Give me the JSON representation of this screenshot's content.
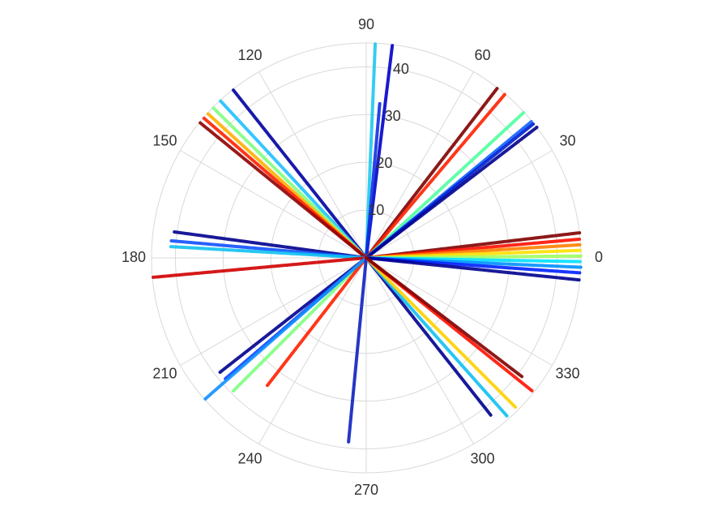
{
  "chart_data": {
    "type": "polar",
    "rlim": [
      0,
      45
    ],
    "rticks": [
      10,
      20,
      30,
      40
    ],
    "thetaticks": [
      0,
      30,
      60,
      90,
      120,
      150,
      180,
      210,
      240,
      270,
      300,
      330
    ],
    "grid": true,
    "series": [
      {
        "color": "#1ec8f0",
        "theta": [
          87.6,
          87.6
        ],
        "r": [
          0,
          45
        ]
      },
      {
        "color": "#0000c8",
        "theta": [
          83,
          83
        ],
        "r": [
          0,
          44.8
        ]
      },
      {
        "color": "#1030e0",
        "theta": [
          85,
          85
        ],
        "r": [
          0,
          32.4
        ]
      },
      {
        "color": "#800000",
        "theta": [
          52.3,
          52.3
        ],
        "r": [
          0,
          45
        ]
      },
      {
        "color": "#ff2000",
        "theta": [
          49.7,
          49.7
        ],
        "r": [
          0,
          45
        ]
      },
      {
        "color": "#50ffa0",
        "theta": [
          42.7,
          42.7
        ],
        "r": [
          0,
          45
        ]
      },
      {
        "color": "#1060ff",
        "theta": [
          39.5,
          39.5
        ],
        "r": [
          0,
          45
        ]
      },
      {
        "color": "#0020d0",
        "theta": [
          38.7,
          38.7
        ],
        "r": [
          0,
          45
        ]
      },
      {
        "color": "#00008f",
        "theta": [
          37.4,
          37.4
        ],
        "r": [
          0,
          45
        ]
      },
      {
        "color": "#800000",
        "theta": [
          6.7,
          6.7
        ],
        "r": [
          0,
          45
        ]
      },
      {
        "color": "#ff1000",
        "theta": [
          5,
          5
        ],
        "r": [
          0,
          45
        ]
      },
      {
        "color": "#ff8000",
        "theta": [
          3.5,
          3.5
        ],
        "r": [
          0,
          45
        ]
      },
      {
        "color": "#ffe000",
        "theta": [
          2,
          2
        ],
        "r": [
          0,
          45
        ]
      },
      {
        "color": "#a0ff60",
        "theta": [
          0.5,
          0.5
        ],
        "r": [
          0,
          45
        ]
      },
      {
        "color": "#00e0ff",
        "theta": [
          -1,
          -1
        ],
        "r": [
          0,
          45
        ]
      },
      {
        "color": "#0090ff",
        "theta": [
          -2.5,
          -2.5
        ],
        "r": [
          0,
          45
        ]
      },
      {
        "color": "#0020ff",
        "theta": [
          -4,
          -4
        ],
        "r": [
          0,
          45
        ]
      },
      {
        "color": "#00008f",
        "theta": [
          -5.9,
          -5.9
        ],
        "r": [
          0,
          45
        ]
      },
      {
        "color": "#0000a0",
        "theta": [
          128.4,
          128.4
        ],
        "r": [
          0,
          45
        ]
      },
      {
        "color": "#20c0ff",
        "theta": [
          132.9,
          132.9
        ],
        "r": [
          0,
          45
        ]
      },
      {
        "color": "#80ff80",
        "theta": [
          135.6,
          135.6
        ],
        "r": [
          0,
          45
        ]
      },
      {
        "color": "#ffb000",
        "theta": [
          137.7,
          137.7
        ],
        "r": [
          0,
          45
        ]
      },
      {
        "color": "#ff2000",
        "theta": [
          139.3,
          139.3
        ],
        "r": [
          0,
          45
        ]
      },
      {
        "color": "#900000",
        "theta": [
          140.9,
          140.9
        ],
        "r": [
          0,
          45
        ]
      },
      {
        "color": "#00008f",
        "theta": [
          172.3,
          172.3
        ],
        "r": [
          0,
          40.6
        ]
      },
      {
        "color": "#1050ff",
        "theta": [
          175,
          175
        ],
        "r": [
          0,
          41
        ]
      },
      {
        "color": "#10c0f0",
        "theta": [
          176.7,
          176.7
        ],
        "r": [
          0,
          41
        ]
      },
      {
        "color": "#d00000",
        "theta": [
          185.2,
          185.2
        ],
        "r": [
          0,
          45
        ]
      },
      {
        "color": "#00008f",
        "theta": [
          218,
          218
        ],
        "r": [
          0,
          39
        ]
      },
      {
        "color": "#1040ff",
        "theta": [
          220.6,
          220.6
        ],
        "r": [
          0,
          39
        ]
      },
      {
        "color": "#80ff80",
        "theta": [
          225,
          225
        ],
        "r": [
          0,
          39.4
        ]
      },
      {
        "color": "#ff2000",
        "theta": [
          232.2,
          232.2
        ],
        "r": [
          0,
          33.8
        ]
      },
      {
        "color": "#1090ff",
        "theta": [
          221.2,
          221.2
        ],
        "r": [
          0,
          45
        ]
      },
      {
        "color": "#1020c0",
        "theta": [
          264.5,
          264.5
        ],
        "r": [
          0,
          38.7
        ]
      },
      {
        "color": "#00008f",
        "theta": [
          308.4,
          308.4
        ],
        "r": [
          0,
          42
        ]
      },
      {
        "color": "#10c0f0",
        "theta": [
          311.7,
          311.7
        ],
        "r": [
          0,
          44.3
        ]
      },
      {
        "color": "#ffd000",
        "theta": [
          315,
          315
        ],
        "r": [
          0,
          44.2
        ]
      },
      {
        "color": "#ff1000",
        "theta": [
          321.3,
          321.3
        ],
        "r": [
          0,
          44.5
        ]
      },
      {
        "color": "#800000",
        "theta": [
          322.7,
          322.7
        ],
        "r": [
          0,
          41
        ]
      }
    ]
  }
}
